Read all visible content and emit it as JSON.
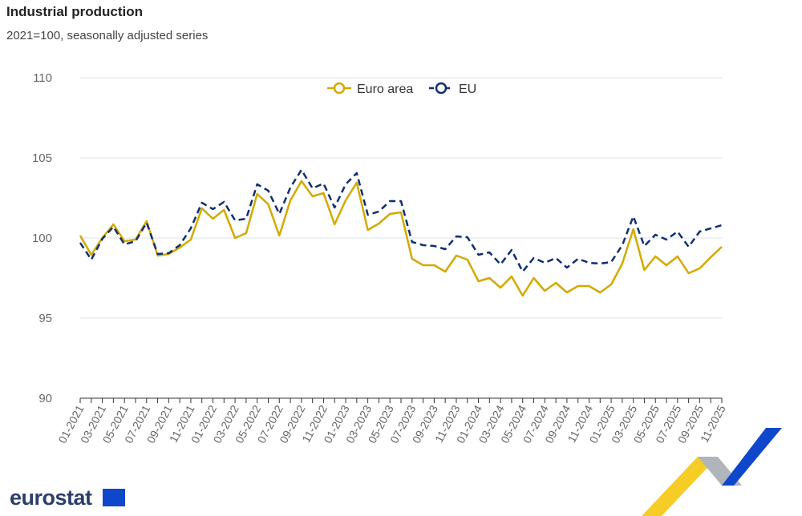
{
  "title": "Industrial production",
  "subtitle": "2021=100, seasonally adjusted series",
  "logo_text": "eurostat",
  "chart_data": {
    "type": "line",
    "title": "Industrial production",
    "subtitle": "2021=100, seasonally adjusted series",
    "ylim": [
      90,
      110
    ],
    "yticks": [
      90,
      95,
      100,
      105,
      110
    ],
    "grid": true,
    "legend_position": "top-center",
    "x": [
      "01-2021",
      "02-2021",
      "03-2021",
      "04-2021",
      "05-2021",
      "06-2021",
      "07-2021",
      "08-2021",
      "09-2021",
      "10-2021",
      "11-2021",
      "12-2021",
      "01-2022",
      "02-2022",
      "03-2022",
      "04-2022",
      "05-2022",
      "06-2022",
      "07-2022",
      "08-2022",
      "09-2022",
      "10-2022",
      "11-2022",
      "12-2022",
      "01-2023",
      "02-2023",
      "03-2023",
      "04-2023",
      "05-2023",
      "06-2023",
      "07-2023",
      "08-2023",
      "09-2023",
      "10-2023",
      "11-2023",
      "12-2023",
      "01-2024",
      "02-2024",
      "03-2024",
      "04-2024",
      "05-2024",
      "06-2024",
      "07-2024",
      "08-2024",
      "09-2024",
      "10-2024",
      "11-2024",
      "12-2024",
      "01-2025",
      "02-2025",
      "03-2025",
      "04-2025",
      "05-2025",
      "06-2025",
      "07-2025",
      "08-2025",
      "09-2025",
      "10-2025",
      "11-2025"
    ],
    "series": [
      {
        "name": "Euro area",
        "color": "#d4a900",
        "dash": false,
        "values": [
          100.15,
          98.95,
          100.0,
          100.85,
          99.8,
          99.9,
          101.05,
          98.9,
          99.0,
          99.4,
          99.9,
          101.85,
          101.2,
          101.75,
          100.0,
          100.3,
          102.75,
          102.1,
          100.15,
          102.35,
          103.55,
          102.6,
          102.8,
          100.85,
          102.35,
          103.45,
          100.5,
          100.9,
          101.5,
          101.6,
          98.7,
          98.3,
          98.3,
          97.9,
          98.9,
          98.65,
          97.3,
          97.5,
          96.9,
          97.6,
          96.4,
          97.5,
          96.7,
          97.2,
          96.6,
          97.0,
          97.0,
          96.6,
          97.1,
          98.4,
          100.55,
          98.0,
          98.85,
          98.3,
          98.85,
          97.8,
          98.1,
          98.8,
          99.45
        ]
      },
      {
        "name": "EU",
        "color": "#0e2f72",
        "dash": true,
        "values": [
          99.7,
          98.65,
          99.95,
          100.7,
          99.6,
          99.8,
          100.95,
          99.0,
          99.05,
          99.55,
          100.6,
          102.2,
          101.8,
          102.25,
          101.1,
          101.2,
          103.35,
          102.95,
          101.5,
          103.15,
          104.25,
          103.1,
          103.4,
          101.9,
          103.35,
          104.05,
          101.45,
          101.65,
          102.3,
          102.3,
          99.75,
          99.55,
          99.5,
          99.3,
          100.1,
          100.05,
          98.95,
          99.1,
          98.35,
          99.25,
          97.9,
          98.75,
          98.45,
          98.75,
          98.15,
          98.7,
          98.45,
          98.4,
          98.5,
          99.55,
          101.35,
          99.5,
          100.2,
          99.9,
          100.4,
          99.45,
          100.4,
          100.6,
          100.8
        ]
      }
    ]
  }
}
